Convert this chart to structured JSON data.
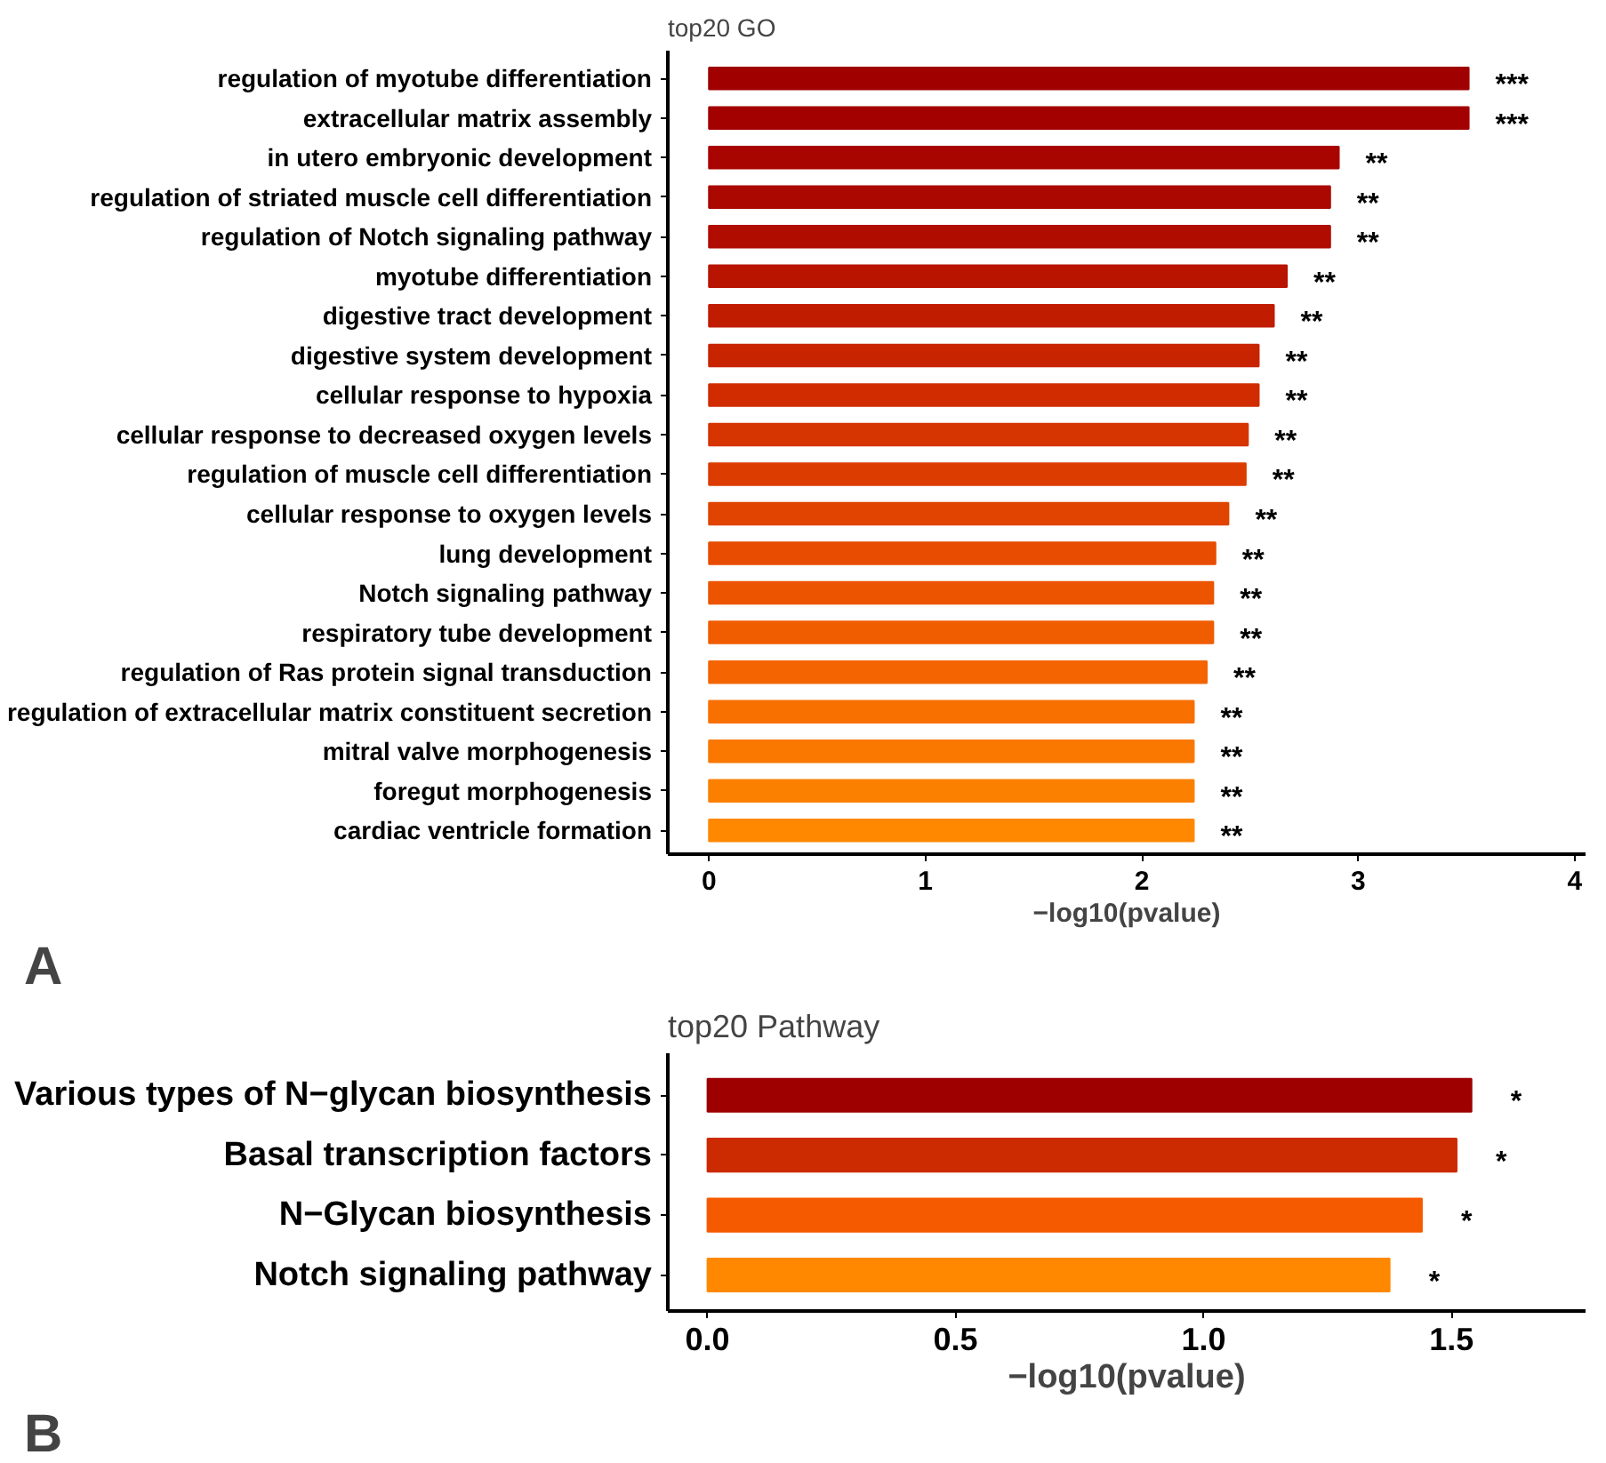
{
  "chart_data": [
    {
      "type": "bar",
      "orientation": "horizontal",
      "title": "top20 GO",
      "xlabel": "−log10(pvalue)",
      "categories": [
        "regulation of myotube differentiation",
        "extracellular matrix assembly",
        "in utero embryonic development",
        "regulation of striated muscle cell differentiation",
        "regulation of Notch signaling pathway",
        "myotube differentiation",
        "digestive tract development",
        "digestive system development",
        "cellular response to hypoxia",
        "cellular response to decreased oxygen levels",
        "regulation of muscle cell differentiation",
        "cellular response to oxygen levels",
        "lung development",
        "Notch signaling pathway",
        "respiratory tube development",
        "regulation of Ras protein signal transduction",
        "regulation of extracellular matrix constituent secretion",
        "mitral valve morphogenesis",
        "foregut morphogenesis",
        "cardiac ventricle formation"
      ],
      "values": [
        3.51,
        3.51,
        2.91,
        2.87,
        2.87,
        2.67,
        2.61,
        2.54,
        2.54,
        2.49,
        2.48,
        2.4,
        2.34,
        2.33,
        2.33,
        2.3,
        2.24,
        2.24,
        2.24,
        2.24
      ],
      "value_labels": [
        "***",
        "***",
        "**",
        "**",
        "**",
        "**",
        "**",
        "**",
        "**",
        "**",
        "**",
        "**",
        "**",
        "**",
        "**",
        "**",
        "**",
        "**",
        "**",
        "**"
      ],
      "colors": [
        "#a00000",
        "#a30000",
        "#a80400",
        "#aa0800",
        "#b00c00",
        "#b81400",
        "#c01c00",
        "#c82400",
        "#d02c00",
        "#d63400",
        "#dc3c00",
        "#e04400",
        "#e84c00",
        "#ec5400",
        "#f05c00",
        "#f46400",
        "#f87000",
        "#fa7800",
        "#fc8000",
        "#ff8800"
      ],
      "xlim": [
        -0.19,
        4.05
      ],
      "xticks": [
        0,
        1,
        2,
        3,
        4
      ],
      "grid": false,
      "annotations": [
        "A"
      ]
    },
    {
      "type": "bar",
      "orientation": "horizontal",
      "title": "top20 Pathway",
      "xlabel": "−log10(pvalue)",
      "categories": [
        "Various types of N−glycan biosynthesis",
        "Basal transcription factors",
        "N−Glycan biosynthesis",
        "Notch signaling pathway"
      ],
      "values": [
        1.54,
        1.51,
        1.44,
        1.375
      ],
      "value_labels": [
        "*",
        "*",
        "*",
        "*"
      ],
      "colors": [
        "#9e0000",
        "#cc2a00",
        "#f55a00",
        "#ff8800"
      ],
      "xlim": [
        -0.08,
        1.77
      ],
      "xticks": [
        {
          "value": 0,
          "label": "0.0"
        },
        {
          "value": 0.5,
          "label": "0.5"
        },
        {
          "value": 1,
          "label": "1.0"
        },
        {
          "value": 1.5,
          "label": "1.5"
        }
      ],
      "grid": false,
      "annotations": [
        "B"
      ]
    }
  ]
}
